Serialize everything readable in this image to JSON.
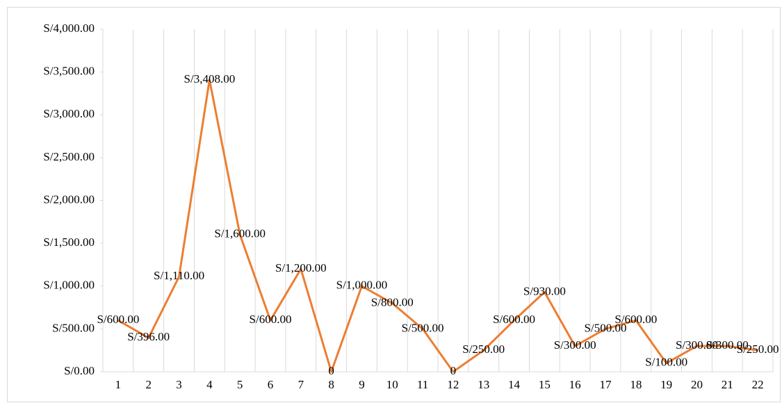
{
  "chart_data": {
    "type": "line",
    "categories": [
      "1",
      "2",
      "3",
      "4",
      "5",
      "6",
      "7",
      "8",
      "9",
      "10",
      "11",
      "12",
      "13",
      "14",
      "15",
      "16",
      "17",
      "18",
      "19",
      "20",
      "21",
      "22"
    ],
    "series": [
      {
        "color": "#ED7D31",
        "values": [
          600,
          396,
          1110,
          3408,
          1600,
          600,
          1200,
          0,
          1000,
          800,
          500,
          0,
          250,
          600,
          930,
          300,
          500,
          600,
          100,
          300,
          300,
          250
        ],
        "value_labels": [
          "S/600.00",
          "S/396.00",
          "S/1,110.00",
          "S/3,408.00",
          "S/1,600.00",
          "S/600.00",
          "S/1,200.00",
          "0",
          "S/1,000.00",
          "S/800.00",
          "S/500.00",
          "0",
          "S/250.00",
          "S/600.00",
          "S/930.00",
          "S/300.00",
          "S/500.00",
          "S/600.00",
          "S/100.00",
          "S/300.00",
          "S/300.00",
          "S/250.00"
        ]
      }
    ],
    "ylim": [
      0,
      4000
    ],
    "yticks": [
      {
        "value": 0,
        "label": "S/0.00"
      },
      {
        "value": 500,
        "label": "S/500.00"
      },
      {
        "value": 1000,
        "label": "S/1,000.00"
      },
      {
        "value": 1500,
        "label": "S/1,500.00"
      },
      {
        "value": 2000,
        "label": "S/2,000.00"
      },
      {
        "value": 2500,
        "label": "S/2,500.00"
      },
      {
        "value": 3000,
        "label": "S/3,000.00"
      },
      {
        "value": 3500,
        "label": "S/3,500.00"
      },
      {
        "value": 4000,
        "label": "S/4,000.00"
      }
    ],
    "grid": true
  }
}
